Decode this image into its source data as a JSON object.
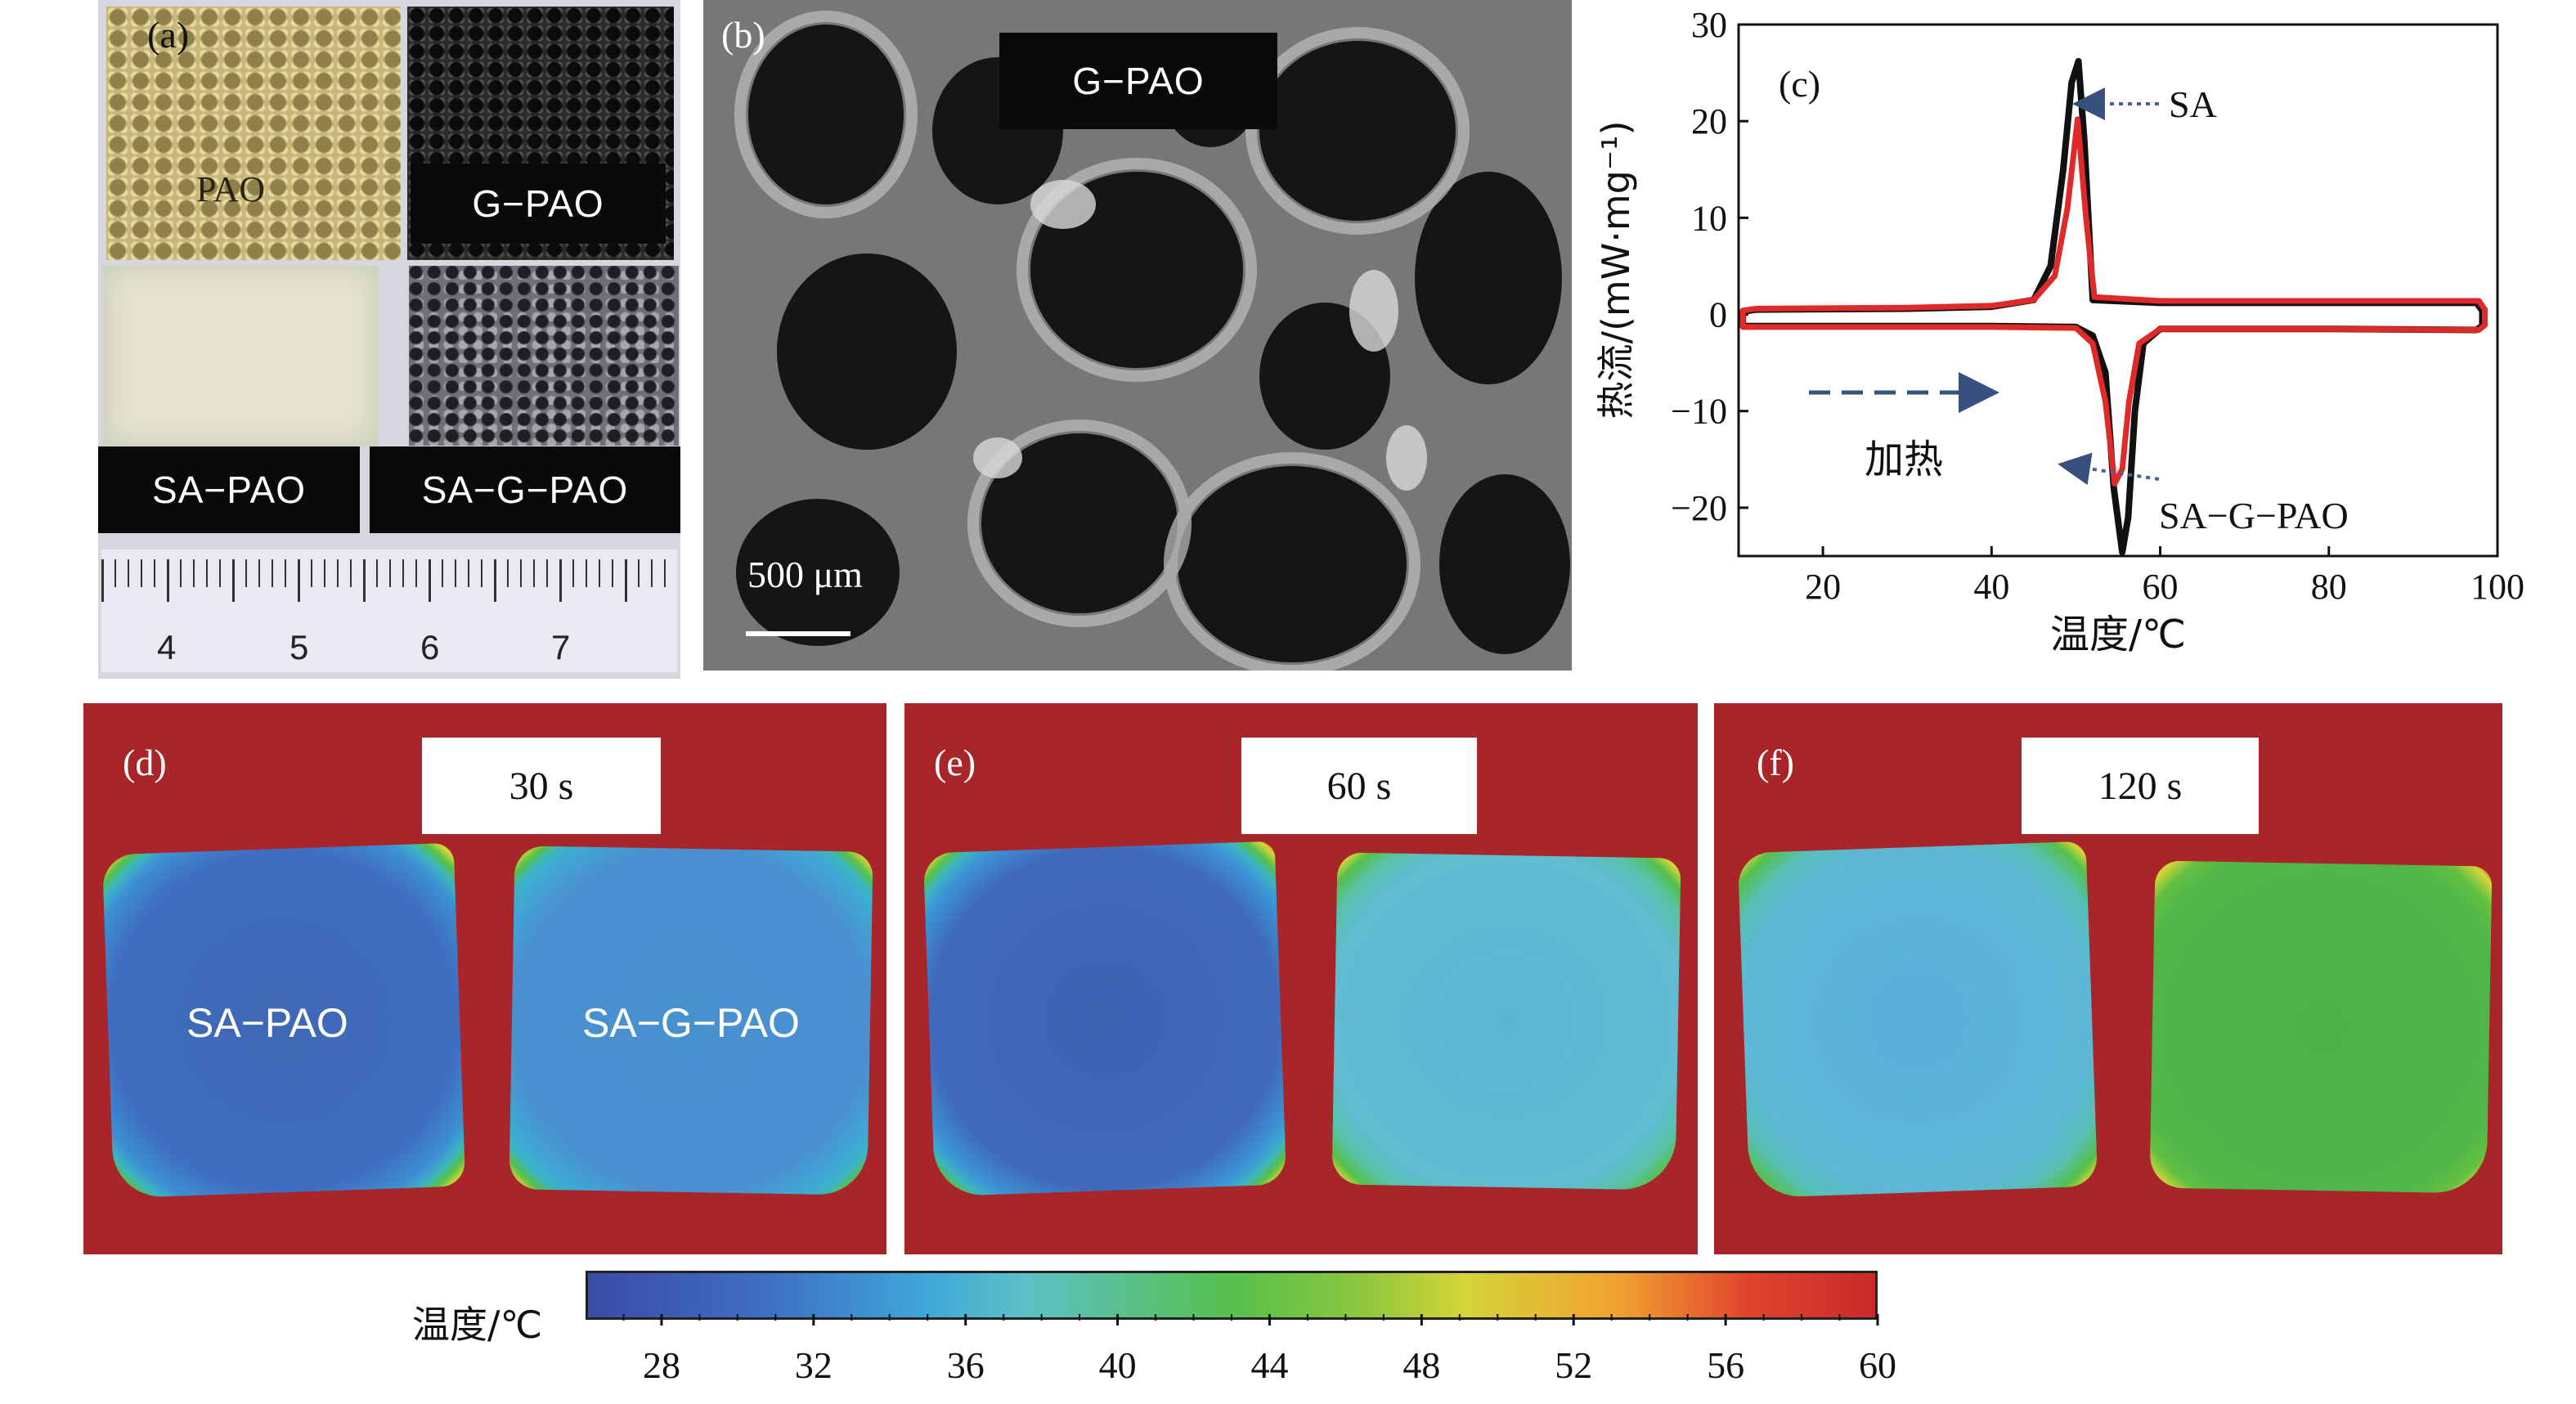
{
  "panel_a": {
    "label": "(a)",
    "samples": [
      "PAO",
      "G−PAO",
      "SA−PAO",
      "SA−G−PAO"
    ],
    "ruler_numbers": [
      "4",
      "5",
      "6",
      "7"
    ]
  },
  "panel_b": {
    "label": "(b)",
    "title": "G−PAO",
    "scale_bar": "500 μm"
  },
  "panel_c": {
    "label": "(c)",
    "annotation_sa": "SA",
    "annotation_sagpao": "SA−G−PAO",
    "heating_label": "加热",
    "chart_data": {
      "type": "line",
      "xlabel": "温度/℃",
      "ylabel": "热流/(mW·mg⁻¹)",
      "xlim": [
        10,
        100
      ],
      "ylim": [
        -25,
        30
      ],
      "xticks": [
        20,
        40,
        60,
        80,
        100
      ],
      "yticks": [
        30,
        20,
        10,
        0,
        -10,
        -20
      ],
      "ytick_labels": [
        "30",
        "20",
        "10",
        "0",
        "−10",
        "−20"
      ],
      "series": [
        {
          "name": "SA",
          "color": "#111111",
          "x": [
            12,
            30,
            40,
            45,
            47,
            48.5,
            49.5,
            50.3,
            51,
            52,
            60,
            80,
            97.5,
            98.2,
            98.2,
            97.5,
            80,
            60,
            58,
            57,
            56.2,
            55.5,
            54.5,
            53.5,
            52,
            50,
            40,
            20,
            10.5,
            10.5,
            12
          ],
          "y": [
            0.5,
            0.6,
            0.8,
            1.5,
            5,
            15,
            24,
            26.2,
            18,
            1.5,
            1.2,
            1.2,
            1.2,
            0.4,
            -1.2,
            -1.6,
            -1.5,
            -1.5,
            -3,
            -10,
            -21,
            -24.6,
            -18,
            -6,
            -2.2,
            -1.3,
            -1.2,
            -1.2,
            -1.2,
            0.3,
            0.5
          ]
        },
        {
          "name": "SA−G−PAO",
          "color": "#e02a2a",
          "x": [
            12,
            30,
            40,
            45,
            47.5,
            49,
            50.2,
            51.2,
            52.2,
            60,
            80,
            97.8,
            98.5,
            98.5,
            97.8,
            80,
            60,
            57.5,
            56.3,
            55.5,
            54.6,
            53.5,
            52,
            50,
            40,
            20,
            10.5,
            10.5,
            12
          ],
          "y": [
            0.6,
            0.7,
            0.9,
            1.5,
            4,
            11,
            20.2,
            10,
            1.8,
            1.4,
            1.4,
            1.4,
            0.5,
            -1.1,
            -1.6,
            -1.5,
            -1.5,
            -3,
            -9,
            -16,
            -17.5,
            -9,
            -3,
            -1.4,
            -1.3,
            -1.3,
            -1.3,
            0.4,
            0.6
          ]
        }
      ]
    }
  },
  "thermal_panels": [
    {
      "label": "(d)",
      "time": "30 s",
      "left_label": "SA−PAO",
      "right_label": "SA−G−PAO"
    },
    {
      "label": "(e)",
      "time": "60 s"
    },
    {
      "label": "(f)",
      "time": "120 s"
    }
  ],
  "colorbar": {
    "label": "温度/℃",
    "ticks": [
      "28",
      "32",
      "36",
      "40",
      "44",
      "48",
      "52",
      "56",
      "60"
    ]
  }
}
